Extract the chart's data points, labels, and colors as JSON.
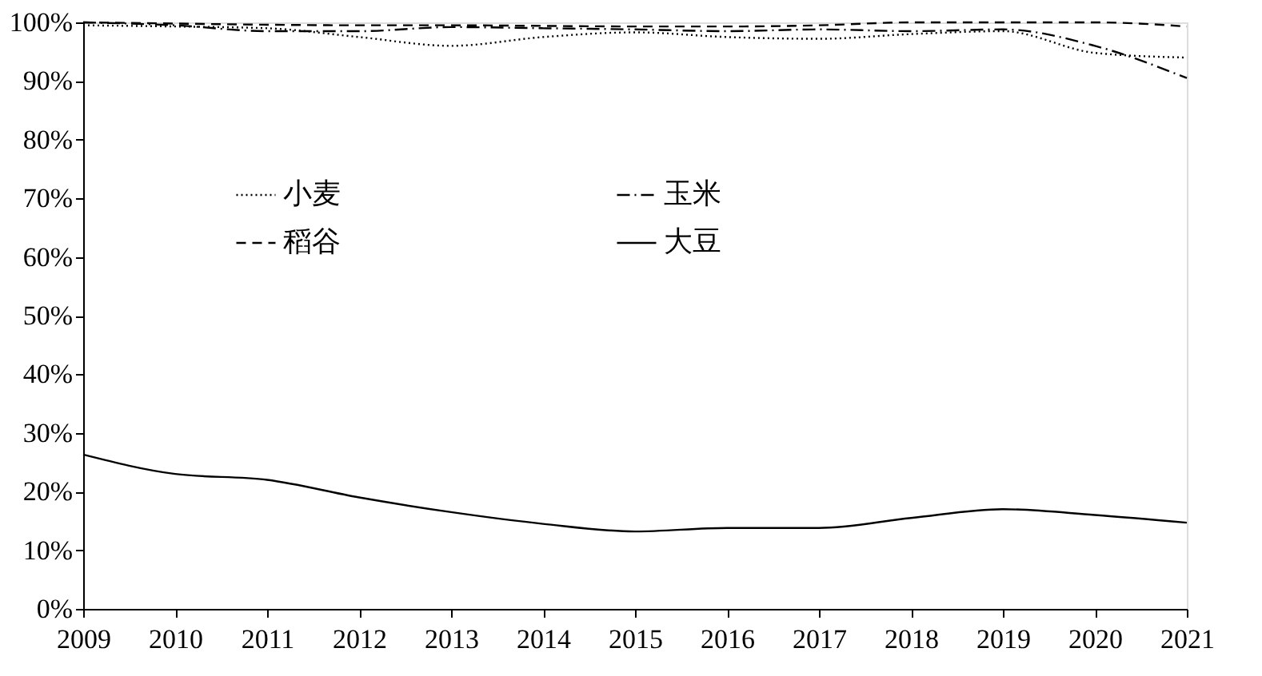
{
  "chart_data": {
    "type": "line",
    "x": [
      2009,
      2010,
      2011,
      2012,
      2013,
      2014,
      2015,
      2016,
      2017,
      2018,
      2019,
      2020,
      2021
    ],
    "series": [
      {
        "name": "小麦",
        "color": "#000000",
        "line_style": "dotted",
        "values": [
          99.5,
          99.3,
          99,
          97.5,
          96,
          97.5,
          98.3,
          97.5,
          97.2,
          98,
          98.5,
          94.8,
          94
        ]
      },
      {
        "name": "玉米",
        "color": "#000000",
        "line_style": "dashdot",
        "values": [
          100,
          99.5,
          98.5,
          98.5,
          99.2,
          99,
          98.8,
          98.5,
          98.8,
          98.5,
          98.8,
          96,
          90.5
        ]
      },
      {
        "name": "稻谷",
        "color": "#000000",
        "line_style": "dashed",
        "values": [
          100,
          99.8,
          99.6,
          99.5,
          99.5,
          99.4,
          99.3,
          99.3,
          99.5,
          100,
          100,
          100,
          99.3
        ]
      },
      {
        "name": "大豆",
        "color": "#000000",
        "line_style": "solid",
        "values": [
          26.3,
          23,
          22,
          19,
          16.5,
          14.5,
          13.2,
          13.8,
          13.8,
          15.5,
          17,
          16,
          14.7
        ]
      }
    ],
    "xlim": [
      2009,
      2021
    ],
    "xticks": [
      2009,
      2010,
      2011,
      2012,
      2013,
      2014,
      2015,
      2016,
      2017,
      2018,
      2019,
      2020,
      2021
    ],
    "ylim": [
      0,
      100
    ],
    "yticks": [
      {
        "value": 0,
        "label": "0%"
      },
      {
        "value": 10,
        "label": "10%"
      },
      {
        "value": 20,
        "label": "20%"
      },
      {
        "value": 30,
        "label": "30%"
      },
      {
        "value": 40,
        "label": "40%"
      },
      {
        "value": 50,
        "label": "50%"
      },
      {
        "value": 60,
        "label": "60%"
      },
      {
        "value": 70,
        "label": "70%"
      },
      {
        "value": 80,
        "label": "80%"
      },
      {
        "value": 90,
        "label": "90%"
      },
      {
        "value": 100,
        "label": "100%"
      }
    ],
    "grid": false,
    "legend": "top left",
    "marker": "none"
  }
}
